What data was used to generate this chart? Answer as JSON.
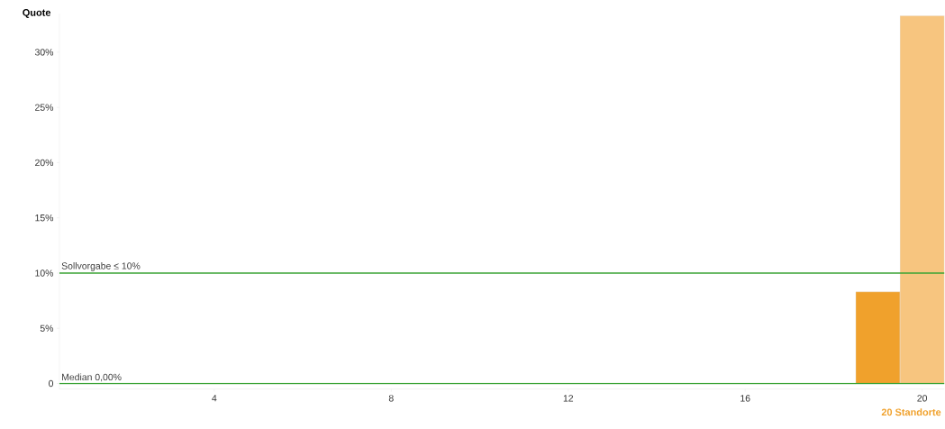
{
  "chart_data": {
    "type": "bar",
    "xlabel": "20 Standorte",
    "ylabel": "Quote",
    "x": [
      1,
      2,
      3,
      4,
      5,
      6,
      7,
      8,
      9,
      10,
      11,
      12,
      13,
      14,
      15,
      16,
      17,
      18,
      19,
      20
    ],
    "values": [
      0,
      0,
      0,
      0,
      0,
      0,
      0,
      0,
      0,
      0,
      0,
      0,
      0,
      0,
      0,
      0,
      0,
      0,
      8.3,
      33.3
    ],
    "colors": [
      "#f0a12c",
      "#f0a12c",
      "#f0a12c",
      "#f0a12c",
      "#f0a12c",
      "#f0a12c",
      "#f0a12c",
      "#f0a12c",
      "#f0a12c",
      "#f0a12c",
      "#f0a12c",
      "#f0a12c",
      "#f0a12c",
      "#f0a12c",
      "#f0a12c",
      "#f0a12c",
      "#f0a12c",
      "#f0a12c",
      "#f0a12c",
      "#f7c57f"
    ],
    "xlim": [
      0.5,
      20.5
    ],
    "ylim": [
      -0.5,
      33.5
    ],
    "xticks": [
      4,
      8,
      12,
      16,
      20
    ],
    "yticks": [
      {
        "value": 0,
        "label": "0"
      },
      {
        "value": 5,
        "label": "5%"
      },
      {
        "value": 10,
        "label": "10%"
      },
      {
        "value": 15,
        "label": "15%"
      },
      {
        "value": 20,
        "label": "20%"
      },
      {
        "value": 25,
        "label": "25%"
      },
      {
        "value": 30,
        "label": "30%"
      }
    ],
    "ref_lines": [
      {
        "axis": "y",
        "value": 10,
        "label": "Sollvorgabe ≤ 10%",
        "color": "#3aa335"
      },
      {
        "axis": "y",
        "value": 0,
        "label": "Median 0,00%",
        "color": "#3aa335"
      }
    ]
  }
}
